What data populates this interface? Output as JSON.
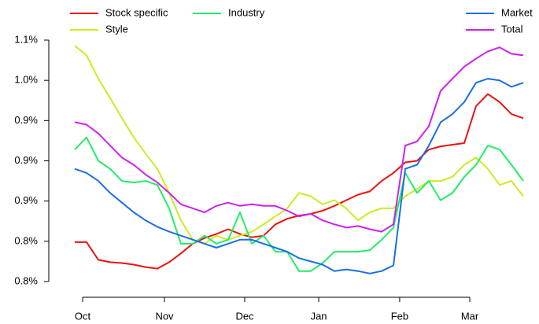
{
  "chart_data": {
    "type": "line",
    "x": [
      0,
      1,
      2,
      3,
      4,
      5,
      6,
      7,
      8,
      9,
      10,
      11,
      12,
      13,
      14,
      15,
      16,
      17,
      18,
      19,
      20,
      21,
      22,
      23,
      24,
      25,
      26,
      27,
      28,
      29,
      30,
      31,
      32,
      33,
      34,
      35,
      36,
      37,
      38
    ],
    "series": [
      {
        "name": "Stock specific",
        "color": "#ee1111",
        "values": [
          0.799,
          0.799,
          0.777,
          0.774,
          0.773,
          0.771,
          0.768,
          0.766,
          0.774,
          0.785,
          0.797,
          0.804,
          0.809,
          0.815,
          0.809,
          0.805,
          0.807,
          0.821,
          0.828,
          0.832,
          0.834,
          0.838,
          0.844,
          0.851,
          0.858,
          0.862,
          0.875,
          0.885,
          0.898,
          0.9,
          0.914,
          0.918,
          0.92,
          0.922,
          0.968,
          0.983,
          0.973,
          0.958,
          0.953
        ]
      },
      {
        "name": "Style",
        "color": "#ccec22",
        "values": [
          1.043,
          1.031,
          1.002,
          0.978,
          0.953,
          0.929,
          0.909,
          0.89,
          0.86,
          0.826,
          0.802,
          0.797,
          0.807,
          0.802,
          0.807,
          0.812,
          0.821,
          0.831,
          0.841,
          0.86,
          0.856,
          0.846,
          0.851,
          0.841,
          0.826,
          0.836,
          0.841,
          0.841,
          0.856,
          0.865,
          0.875,
          0.875,
          0.88,
          0.895,
          0.904,
          0.89,
          0.87,
          0.875,
          0.856
        ]
      },
      {
        "name": "Industry",
        "color": "#22ee66",
        "values": [
          0.914,
          0.929,
          0.9,
          0.89,
          0.875,
          0.873,
          0.875,
          0.87,
          0.841,
          0.797,
          0.797,
          0.807,
          0.797,
          0.802,
          0.836,
          0.797,
          0.807,
          0.787,
          0.787,
          0.763,
          0.763,
          0.773,
          0.787,
          0.787,
          0.787,
          0.789,
          0.802,
          0.817,
          0.885,
          0.86,
          0.875,
          0.851,
          0.86,
          0.88,
          0.895,
          0.919,
          0.914,
          0.895,
          0.875
        ]
      },
      {
        "name": "Market",
        "color": "#1a6ee8",
        "values": [
          0.89,
          0.885,
          0.875,
          0.86,
          0.848,
          0.836,
          0.826,
          0.818,
          0.812,
          0.807,
          0.802,
          0.797,
          0.792,
          0.797,
          0.802,
          0.802,
          0.797,
          0.792,
          0.787,
          0.779,
          0.775,
          0.771,
          0.763,
          0.765,
          0.763,
          0.76,
          0.763,
          0.77,
          0.89,
          0.895,
          0.919,
          0.948,
          0.958,
          0.973,
          0.997,
          1.002,
          1.0,
          0.992,
          0.997
        ]
      },
      {
        "name": "Total",
        "color": "#cc22ee",
        "values": [
          0.948,
          0.945,
          0.934,
          0.919,
          0.904,
          0.895,
          0.883,
          0.873,
          0.86,
          0.846,
          0.841,
          0.836,
          0.844,
          0.848,
          0.844,
          0.846,
          0.844,
          0.844,
          0.838,
          0.831,
          0.834,
          0.826,
          0.821,
          0.817,
          0.819,
          0.815,
          0.812,
          0.821,
          0.919,
          0.924,
          0.943,
          0.987,
          1.002,
          1.017,
          1.027,
          1.036,
          1.041,
          1.033,
          1.031
        ]
      }
    ],
    "xlim": [
      -1.2,
      39
    ],
    "xticks": [
      {
        "value": 0.67,
        "label": "Oct"
      },
      {
        "value": 7.6,
        "label": "Nov"
      },
      {
        "value": 14.4,
        "label": "Dec"
      },
      {
        "value": 20.67,
        "label": "Jan"
      },
      {
        "value": 27.53,
        "label": "Feb"
      },
      {
        "value": 33.47,
        "label": "Mar"
      }
    ],
    "ylim": [
      0.75,
      1.05
    ],
    "yticks": [
      {
        "value": 0.75,
        "label": "0.8%"
      },
      {
        "value": 0.8,
        "label": "0.8%"
      },
      {
        "value": 0.85,
        "label": "0.9%"
      },
      {
        "value": 0.9,
        "label": "0.9%"
      },
      {
        "value": 0.95,
        "label": "0.9%"
      },
      {
        "value": 1.0,
        "label": "1.0%"
      },
      {
        "value": 1.05,
        "label": "1.1%"
      }
    ],
    "legend": "top"
  }
}
